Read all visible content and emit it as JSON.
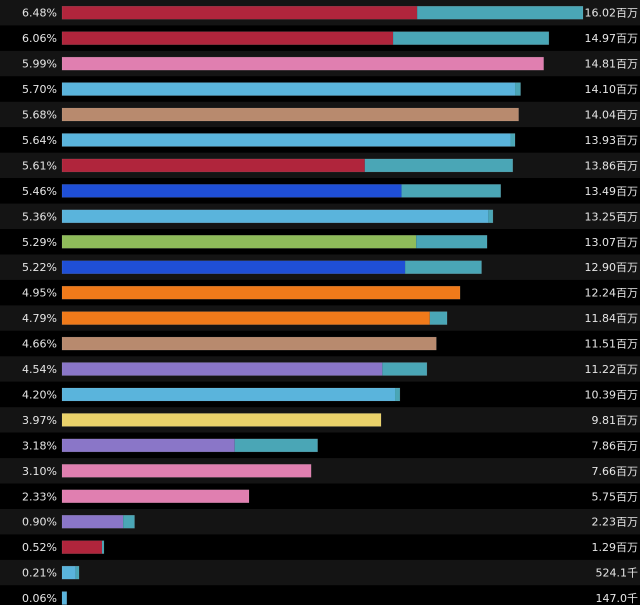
{
  "chart_data": {
    "type": "bar",
    "orientation": "horizontal",
    "stacked": true,
    "secondary_color": "#4aa6b6",
    "rows": [
      {
        "percent": "6.48%",
        "value_label": "16.02百万",
        "value": 16.02,
        "primary": 10.92,
        "color": "#b0253c"
      },
      {
        "percent": "6.06%",
        "value_label": "14.97百万",
        "value": 14.97,
        "primary": 10.18,
        "color": "#b0253c"
      },
      {
        "percent": "5.99%",
        "value_label": "14.81百万",
        "value": 14.81,
        "primary": 14.81,
        "color": "#e07fb0"
      },
      {
        "percent": "5.70%",
        "value_label": "14.10百万",
        "value": 14.1,
        "primary": 13.93,
        "color": "#5ab4dc"
      },
      {
        "percent": "5.68%",
        "value_label": "14.04百万",
        "value": 14.04,
        "primary": 14.04,
        "color": "#b88a6e"
      },
      {
        "percent": "5.64%",
        "value_label": "13.93百万",
        "value": 13.93,
        "primary": 13.79,
        "color": "#5ab4dc"
      },
      {
        "percent": "5.61%",
        "value_label": "13.86百万",
        "value": 13.86,
        "primary": 9.31,
        "color": "#b0253c"
      },
      {
        "percent": "5.46%",
        "value_label": "13.49百万",
        "value": 13.49,
        "primary": 10.44,
        "color": "#1f4fd6"
      },
      {
        "percent": "5.36%",
        "value_label": "13.25百万",
        "value": 13.25,
        "primary": 13.11,
        "color": "#5ab4dc"
      },
      {
        "percent": "5.29%",
        "value_label": "13.07百万",
        "value": 13.07,
        "primary": 10.89,
        "color": "#8fbc5a"
      },
      {
        "percent": "5.22%",
        "value_label": "12.90百万",
        "value": 12.9,
        "primary": 10.55,
        "color": "#1f4fd6"
      },
      {
        "percent": "4.95%",
        "value_label": "12.24百万",
        "value": 12.24,
        "primary": 12.24,
        "color": "#f07a1a"
      },
      {
        "percent": "4.79%",
        "value_label": "11.84百万",
        "value": 11.84,
        "primary": 11.31,
        "color": "#f07a1a"
      },
      {
        "percent": "4.66%",
        "value_label": "11.51百万",
        "value": 11.51,
        "primary": 11.51,
        "color": "#b88a6e"
      },
      {
        "percent": "4.54%",
        "value_label": "11.22百万",
        "value": 11.22,
        "primary": 9.85,
        "color": "#8a76c8"
      },
      {
        "percent": "4.20%",
        "value_label": "10.39百万",
        "value": 10.39,
        "primary": 10.24,
        "color": "#5ab4dc"
      },
      {
        "percent": "3.97%",
        "value_label": "9.81百万",
        "value": 9.81,
        "primary": 9.81,
        "color": "#ead26a"
      },
      {
        "percent": "3.18%",
        "value_label": "7.86百万",
        "value": 7.86,
        "primary": 5.31,
        "color": "#8a76c8"
      },
      {
        "percent": "3.10%",
        "value_label": "7.66百万",
        "value": 7.66,
        "primary": 7.66,
        "color": "#e07fb0"
      },
      {
        "percent": "2.33%",
        "value_label": "5.75百万",
        "value": 5.75,
        "primary": 5.75,
        "color": "#e07fb0"
      },
      {
        "percent": "0.90%",
        "value_label": "2.23百万",
        "value": 2.23,
        "primary": 1.88,
        "color": "#8a76c8"
      },
      {
        "percent": "0.52%",
        "value_label": "1.29百万",
        "value": 1.29,
        "primary": 1.23,
        "color": "#b0253c"
      },
      {
        "percent": "0.21%",
        "value_label": "524.1千",
        "value": 0.5241,
        "primary": 0.4241,
        "color": "#5ab4dc"
      },
      {
        "percent": "0.06%",
        "value_label": "147.0千",
        "value": 0.147,
        "primary": 0.147,
        "color": "#5ab4dc"
      }
    ]
  }
}
